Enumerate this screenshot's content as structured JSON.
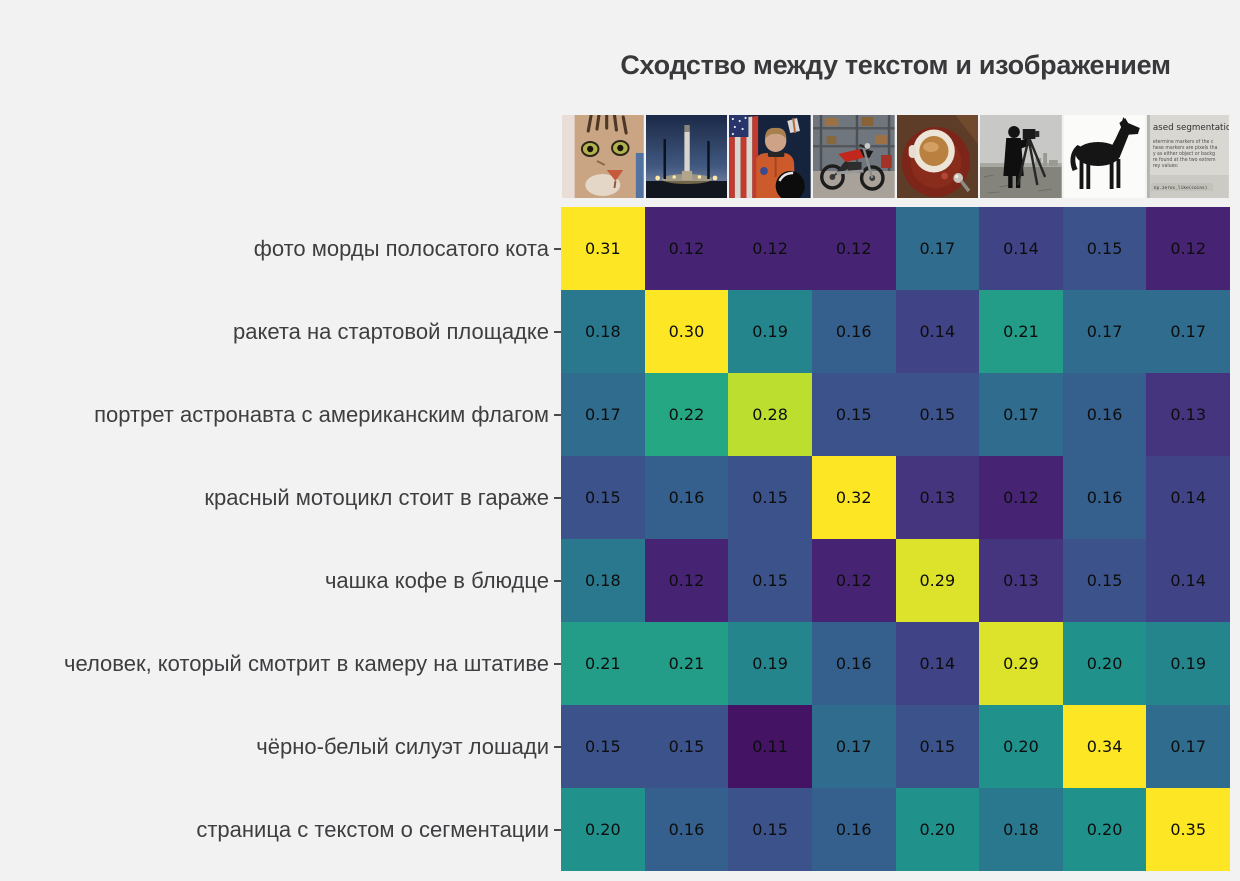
{
  "title": "Сходство между текстом и изображением",
  "colors": {
    "background": "#f3f2f3",
    "title_text": "#39393b",
    "label_text": "#3e3e40",
    "cell_text": "#0d0d0d",
    "tick": "#4a4a4a"
  },
  "chart_data": {
    "type": "heatmap",
    "title": "Сходство между текстом и изображением",
    "rows": [
      "фото морды полосатого кота",
      "ракета на стартовой площадке",
      "портрет астронавта с американским флагом",
      "красный мотоцикл стоит в гараже",
      "чашка кофе в блюдце",
      "человек, который смотрит в камеру на штативе",
      "чёрно-белый силуэт лошади",
      "страница с текстом о сегментации"
    ],
    "columns": [
      "tabby-cat-photo",
      "rocket-on-launch-pad-photo",
      "astronaut-with-flag-photo",
      "red-motorcycle-in-garage-photo",
      "coffee-cup-on-saucer-photo",
      "man-with-camera-on-tripod-photo",
      "black-horse-silhouette-image",
      "segmentation-text-page-image"
    ],
    "values": [
      [
        0.31,
        0.12,
        0.12,
        0.12,
        0.17,
        0.14,
        0.15,
        0.12
      ],
      [
        0.18,
        0.3,
        0.19,
        0.16,
        0.14,
        0.21,
        0.17,
        0.17
      ],
      [
        0.17,
        0.22,
        0.28,
        0.15,
        0.15,
        0.17,
        0.16,
        0.13
      ],
      [
        0.15,
        0.16,
        0.15,
        0.32,
        0.13,
        0.12,
        0.16,
        0.14
      ],
      [
        0.18,
        0.12,
        0.15,
        0.12,
        0.29,
        0.13,
        0.15,
        0.14
      ],
      [
        0.21,
        0.21,
        0.19,
        0.16,
        0.14,
        0.29,
        0.2,
        0.19
      ],
      [
        0.15,
        0.15,
        0.11,
        0.17,
        0.15,
        0.2,
        0.34,
        0.17
      ],
      [
        0.2,
        0.16,
        0.15,
        0.16,
        0.2,
        0.18,
        0.2,
        0.35
      ]
    ],
    "value_decimals": 2,
    "colormap": "viridis",
    "color_range": [
      0.1,
      0.3
    ],
    "legend": "none",
    "grid": false
  },
  "textpage": {
    "heading": "ased segmentation",
    "lines": [
      "etermine markers of the c",
      "hese markers are pixels tha",
      "y as either object or backg",
      "re found at the two extrem",
      "rey values:"
    ],
    "code": "np.zeros_like(coins)"
  }
}
